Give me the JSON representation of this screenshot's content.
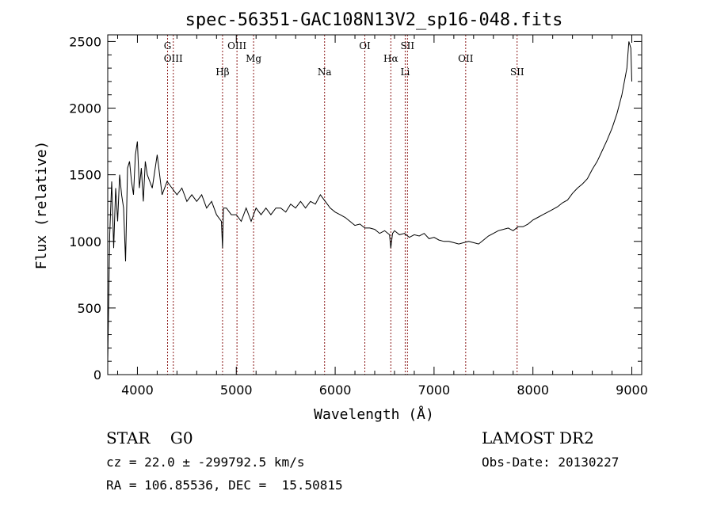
{
  "chart_data": {
    "type": "line",
    "title": "spec-56351-GAC108N13V2_sp16-048.fits",
    "xlabel": "Wavelength (Å)",
    "ylabel": "Flux (relative)",
    "xlim": [
      3700,
      9100
    ],
    "ylim": [
      0,
      2550
    ],
    "x_ticks": [
      4000,
      5000,
      6000,
      7000,
      8000,
      9000
    ],
    "y_ticks": [
      0,
      500,
      1000,
      1500,
      2000,
      2500
    ],
    "grid": false,
    "line_color": "#000000",
    "marker_color": "#8b1a1a",
    "series": [
      {
        "x": [
          3700,
          3720,
          3740,
          3760,
          3780,
          3800,
          3820,
          3840,
          3860,
          3880,
          3900,
          3920,
          3940,
          3960,
          3980,
          4000,
          4020,
          4040,
          4060,
          4080,
          4100,
          4150,
          4200,
          4250,
          4300,
          4350,
          4400,
          4450,
          4500,
          4550,
          4600,
          4650,
          4700,
          4750,
          4800,
          4850,
          4861,
          4870,
          4900,
          4950,
          5000,
          5050,
          5100,
          5150,
          5200,
          5250,
          5300,
          5350,
          5400,
          5450,
          5500,
          5550,
          5600,
          5650,
          5700,
          5750,
          5800,
          5850,
          5900,
          5950,
          6000,
          6050,
          6100,
          6150,
          6200,
          6250,
          6300,
          6350,
          6400,
          6450,
          6500,
          6550,
          6563,
          6580,
          6600,
          6650,
          6700,
          6750,
          6800,
          6850,
          6900,
          6950,
          7000,
          7050,
          7100,
          7150,
          7200,
          7250,
          7300,
          7350,
          7400,
          7450,
          7500,
          7550,
          7600,
          7650,
          7700,
          7750,
          7800,
          7850,
          7900,
          7950,
          8000,
          8050,
          8100,
          8150,
          8200,
          8250,
          8300,
          8350,
          8400,
          8450,
          8500,
          8550,
          8600,
          8650,
          8700,
          8750,
          8800,
          8850,
          8900,
          8950,
          8970,
          8990,
          9000
        ],
        "y": [
          100,
          1050,
          1450,
          950,
          1400,
          1150,
          1500,
          1350,
          1250,
          850,
          1550,
          1600,
          1450,
          1350,
          1650,
          1750,
          1400,
          1550,
          1300,
          1600,
          1500,
          1400,
          1650,
          1350,
          1450,
          1400,
          1350,
          1400,
          1300,
          1350,
          1300,
          1350,
          1250,
          1300,
          1200,
          1150,
          950,
          1250,
          1250,
          1200,
          1200,
          1150,
          1250,
          1150,
          1250,
          1200,
          1250,
          1200,
          1250,
          1250,
          1220,
          1280,
          1250,
          1300,
          1250,
          1300,
          1280,
          1350,
          1300,
          1250,
          1220,
          1200,
          1180,
          1150,
          1120,
          1130,
          1100,
          1100,
          1090,
          1060,
          1080,
          1050,
          950,
          1060,
          1080,
          1050,
          1060,
          1030,
          1050,
          1040,
          1060,
          1020,
          1030,
          1010,
          1000,
          1000,
          990,
          980,
          990,
          1000,
          990,
          980,
          1010,
          1040,
          1060,
          1080,
          1090,
          1100,
          1080,
          1110,
          1110,
          1130,
          1160,
          1180,
          1200,
          1220,
          1240,
          1260,
          1290,
          1310,
          1360,
          1400,
          1430,
          1470,
          1540,
          1600,
          1680,
          1760,
          1850,
          1960,
          2100,
          2300,
          2500,
          2450,
          2200
        ]
      }
    ],
    "lines": [
      {
        "label": "G",
        "x": 4305
      },
      {
        "label": "OIII",
        "x": 4363
      },
      {
        "label": "Hβ",
        "x": 4861
      },
      {
        "label": "OIII",
        "x": 5007
      },
      {
        "label": "Mg",
        "x": 5175
      },
      {
        "label": "Na",
        "x": 5893
      },
      {
        "label": "OI",
        "x": 6300
      },
      {
        "label": "Hα",
        "x": 6563
      },
      {
        "label": "Li",
        "x": 6708
      },
      {
        "label": "SII",
        "x": 6731
      },
      {
        "label": "OII",
        "x": 7320
      },
      {
        "label": "SII",
        "x": 7840
      }
    ]
  },
  "info": {
    "class_line": "STAR    G0",
    "cz_line": "cz = 22.0 ± -299792.5 km/s",
    "radec_line": "RA = 106.85536, DEC =  15.50815",
    "survey": "LAMOST DR2",
    "obs_date": "Obs-Date: 20130227"
  }
}
